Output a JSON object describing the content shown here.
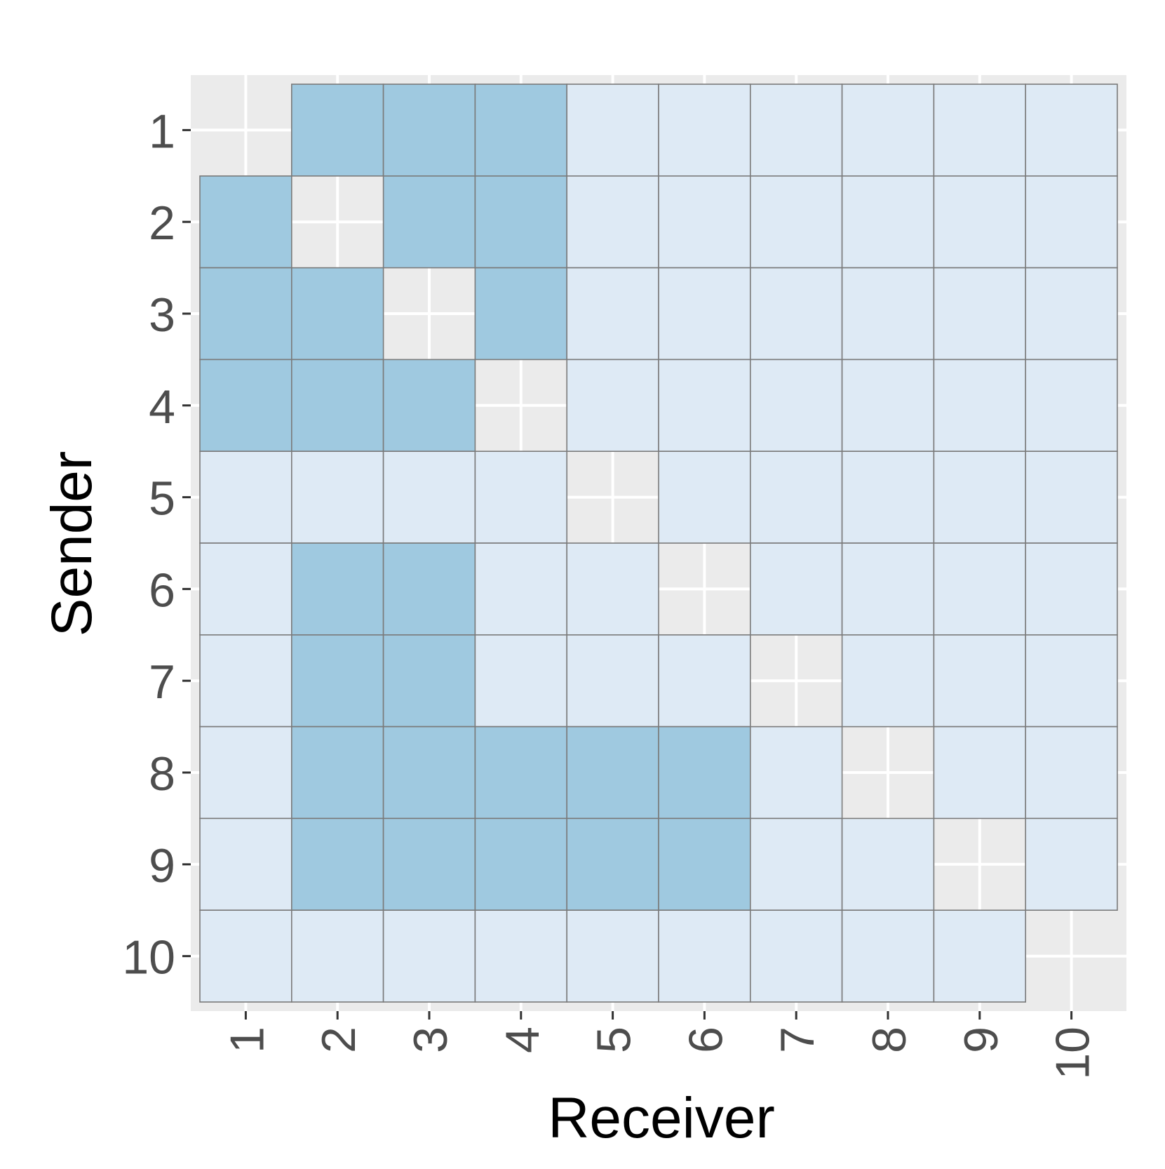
{
  "chart_data": {
    "type": "heatmap",
    "xlabel": "Receiver",
    "ylabel": "Sender",
    "x_categories": [
      "1",
      "2",
      "3",
      "4",
      "5",
      "6",
      "7",
      "8",
      "9",
      "10"
    ],
    "y_categories": [
      "1",
      "2",
      "3",
      "4",
      "5",
      "6",
      "7",
      "8",
      "9",
      "10"
    ],
    "grid": true,
    "legend": "none",
    "colors": {
      "panel_background": "#ebebeb",
      "grid_line": "#ffffff",
      "tile_border": "#7a7a7a",
      "level_0": "#deeaf5",
      "level_1": "#9fc9e0"
    },
    "matrix": [
      [
        null,
        1,
        1,
        1,
        0,
        0,
        0,
        0,
        0,
        0
      ],
      [
        1,
        null,
        1,
        1,
        0,
        0,
        0,
        0,
        0,
        0
      ],
      [
        1,
        1,
        null,
        1,
        0,
        0,
        0,
        0,
        0,
        0
      ],
      [
        1,
        1,
        1,
        null,
        0,
        0,
        0,
        0,
        0,
        0
      ],
      [
        0,
        0,
        0,
        0,
        null,
        0,
        0,
        0,
        0,
        0
      ],
      [
        0,
        1,
        1,
        0,
        0,
        null,
        0,
        0,
        0,
        0
      ],
      [
        0,
        1,
        1,
        0,
        0,
        0,
        null,
        0,
        0,
        0
      ],
      [
        0,
        1,
        1,
        1,
        1,
        1,
        0,
        null,
        0,
        0
      ],
      [
        0,
        1,
        1,
        1,
        1,
        1,
        0,
        0,
        null,
        0
      ],
      [
        0,
        0,
        0,
        0,
        0,
        0,
        0,
        0,
        0,
        null
      ]
    ]
  }
}
